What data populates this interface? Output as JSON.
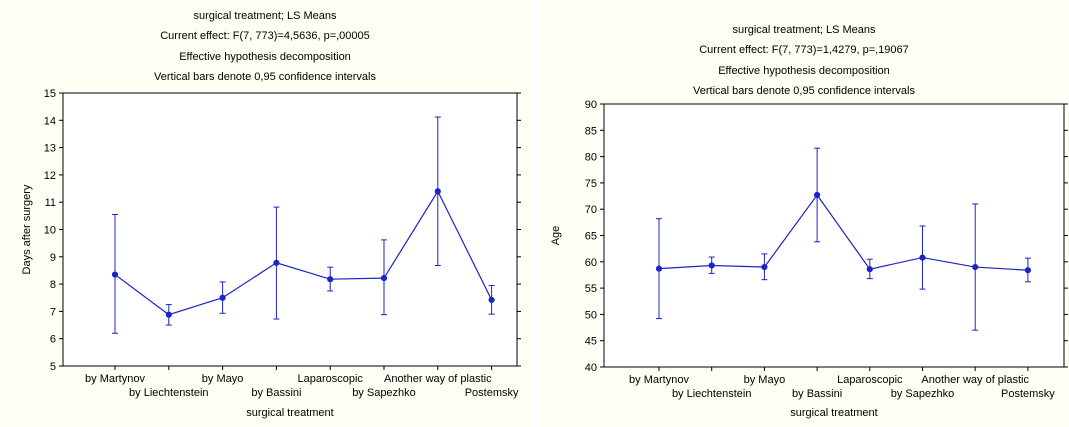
{
  "chart_data": [
    {
      "type": "line",
      "title": [
        "surgical treatment; LS Means",
        "Current effect: F(7, 773)=4,5636, p=,00005",
        "Effective hypothesis decomposition",
        "Vertical bars denote 0,95 confidence intervals"
      ],
      "xlabel": "surgical treatment",
      "ylabel": "Days after surgery",
      "ylim": [
        5,
        15
      ],
      "yticks": [
        5,
        6,
        7,
        8,
        9,
        10,
        11,
        12,
        13,
        14,
        15
      ],
      "categories": [
        "by Martynov",
        "by Liechtenstein",
        "by Mayo",
        "by Bassini",
        "Laparoscopic",
        "by Sapezhko",
        "Another way of plastic",
        "Postemsky"
      ],
      "values": [
        8.35,
        6.88,
        7.5,
        8.78,
        8.18,
        8.22,
        11.4,
        7.42
      ],
      "ci_low": [
        6.2,
        6.5,
        6.93,
        6.72,
        7.75,
        6.88,
        8.68,
        6.9
      ],
      "ci_high": [
        10.55,
        7.25,
        8.08,
        10.82,
        8.62,
        9.62,
        14.12,
        7.95
      ],
      "grid": false,
      "color": "#1a24c8"
    },
    {
      "type": "line",
      "title": [
        "surgical treatment; LS Means",
        "Current effect: F(7, 773)=1,4279, p=,19067",
        "Effective hypothesis decomposition",
        "Vertical bars denote 0,95 confidence intervals"
      ],
      "xlabel": "surgical treatment",
      "ylabel": "Age",
      "ylim": [
        40,
        90
      ],
      "yticks": [
        40,
        45,
        50,
        55,
        60,
        65,
        70,
        75,
        80,
        85,
        90
      ],
      "categories": [
        "by Martynov",
        "by Liechtenstein",
        "by Mayo",
        "by Bassini",
        "Laparoscopic",
        "by Sapezhko",
        "Another way of plastic",
        "Postemsky"
      ],
      "values": [
        58.7,
        59.3,
        59.0,
        72.7,
        58.6,
        60.8,
        59.0,
        58.4
      ],
      "ci_low": [
        49.2,
        57.8,
        56.6,
        63.8,
        56.8,
        54.8,
        47.0,
        56.2
      ],
      "ci_high": [
        68.2,
        60.9,
        61.5,
        81.6,
        60.5,
        66.8,
        71.0,
        60.7
      ],
      "grid": false,
      "color": "#1a24c8"
    }
  ]
}
